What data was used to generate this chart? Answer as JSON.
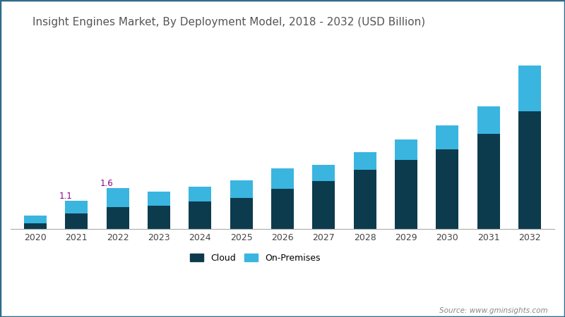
{
  "title": "Insight Engines Market, By Deployment Model, 2018 - 2032 (USD Billion)",
  "years": [
    2020,
    2021,
    2022,
    2023,
    2024,
    2025,
    2026,
    2027,
    2028,
    2029,
    2030,
    2031,
    2032
  ],
  "cloud": [
    0.22,
    0.6,
    0.85,
    0.9,
    1.05,
    1.2,
    1.55,
    1.85,
    2.3,
    2.7,
    3.1,
    3.7,
    4.6
  ],
  "on_premises": [
    0.28,
    0.5,
    0.75,
    0.55,
    0.6,
    0.7,
    0.8,
    0.65,
    0.7,
    0.8,
    0.95,
    1.1,
    1.8
  ],
  "cloud_color": "#0d3b4e",
  "on_premises_color": "#3ab5e0",
  "background_color": "#ffffff",
  "border_color": "#2e6b8a",
  "annotation_2021": "1.1",
  "annotation_2022": "1.6",
  "annotation_color": "#8B008B",
  "source_text": "Source: www.gminsights.com",
  "ylim": [
    0,
    7.5
  ],
  "legend_cloud": "Cloud",
  "legend_on_premises": "On-Premises",
  "title_color": "#555555",
  "title_fontsize": 11
}
